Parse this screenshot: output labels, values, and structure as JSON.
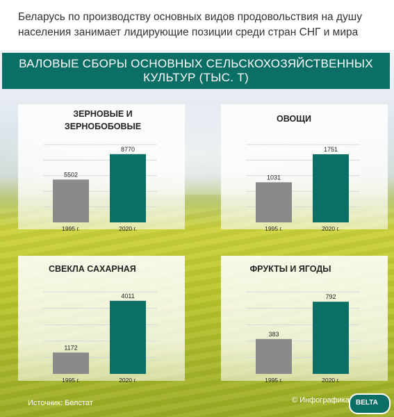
{
  "subtitle": "Беларусь по производству основных видов продовольствия на душу населения занимает лидирующие позиции среди стран СНГ и мира",
  "banner_title": "ВАЛОВЫЕ СБОРЫ ОСНОВНЫХ СЕЛЬСКОХОЗЯЙСТВЕННЫХ КУЛЬТУР (ТЫС. Т)",
  "colors": {
    "bar_1995": "#8a8a8a",
    "bar_2020": "#0c6f66",
    "banner": "#0c6f66"
  },
  "chart_data": [
    {
      "type": "bar",
      "title": "ЗЕРНОВЫЕ И ЗЕРНОБОБОВЫЕ",
      "categories": [
        "1995 г.",
        "2020 г."
      ],
      "values": [
        5502,
        8770
      ],
      "ylim": [
        0,
        10000
      ],
      "grid": true
    },
    {
      "type": "bar",
      "title": "ОВОЩИ",
      "categories": [
        "1995 г.",
        "2020 г."
      ],
      "values": [
        1031,
        1751
      ],
      "ylim": [
        0,
        2000
      ],
      "grid": true
    },
    {
      "type": "bar",
      "title": "СВЕКЛА САХАРНАЯ",
      "categories": [
        "1995 г.",
        "2020 г."
      ],
      "values": [
        1172,
        4011
      ],
      "ylim": [
        0,
        4500
      ],
      "grid": true
    },
    {
      "type": "bar",
      "title": "ФРУКТЫ И ЯГОДЫ",
      "categories": [
        "1995 г.",
        "2020 г."
      ],
      "values": [
        383,
        792
      ],
      "ylim": [
        0,
        900
      ],
      "grid": true
    }
  ],
  "footer": {
    "source": "Источник: Белстат",
    "credit": "© Инфографика"
  },
  "logo": {
    "text": "BELTA",
    "icon": "belta-logo-icon"
  }
}
